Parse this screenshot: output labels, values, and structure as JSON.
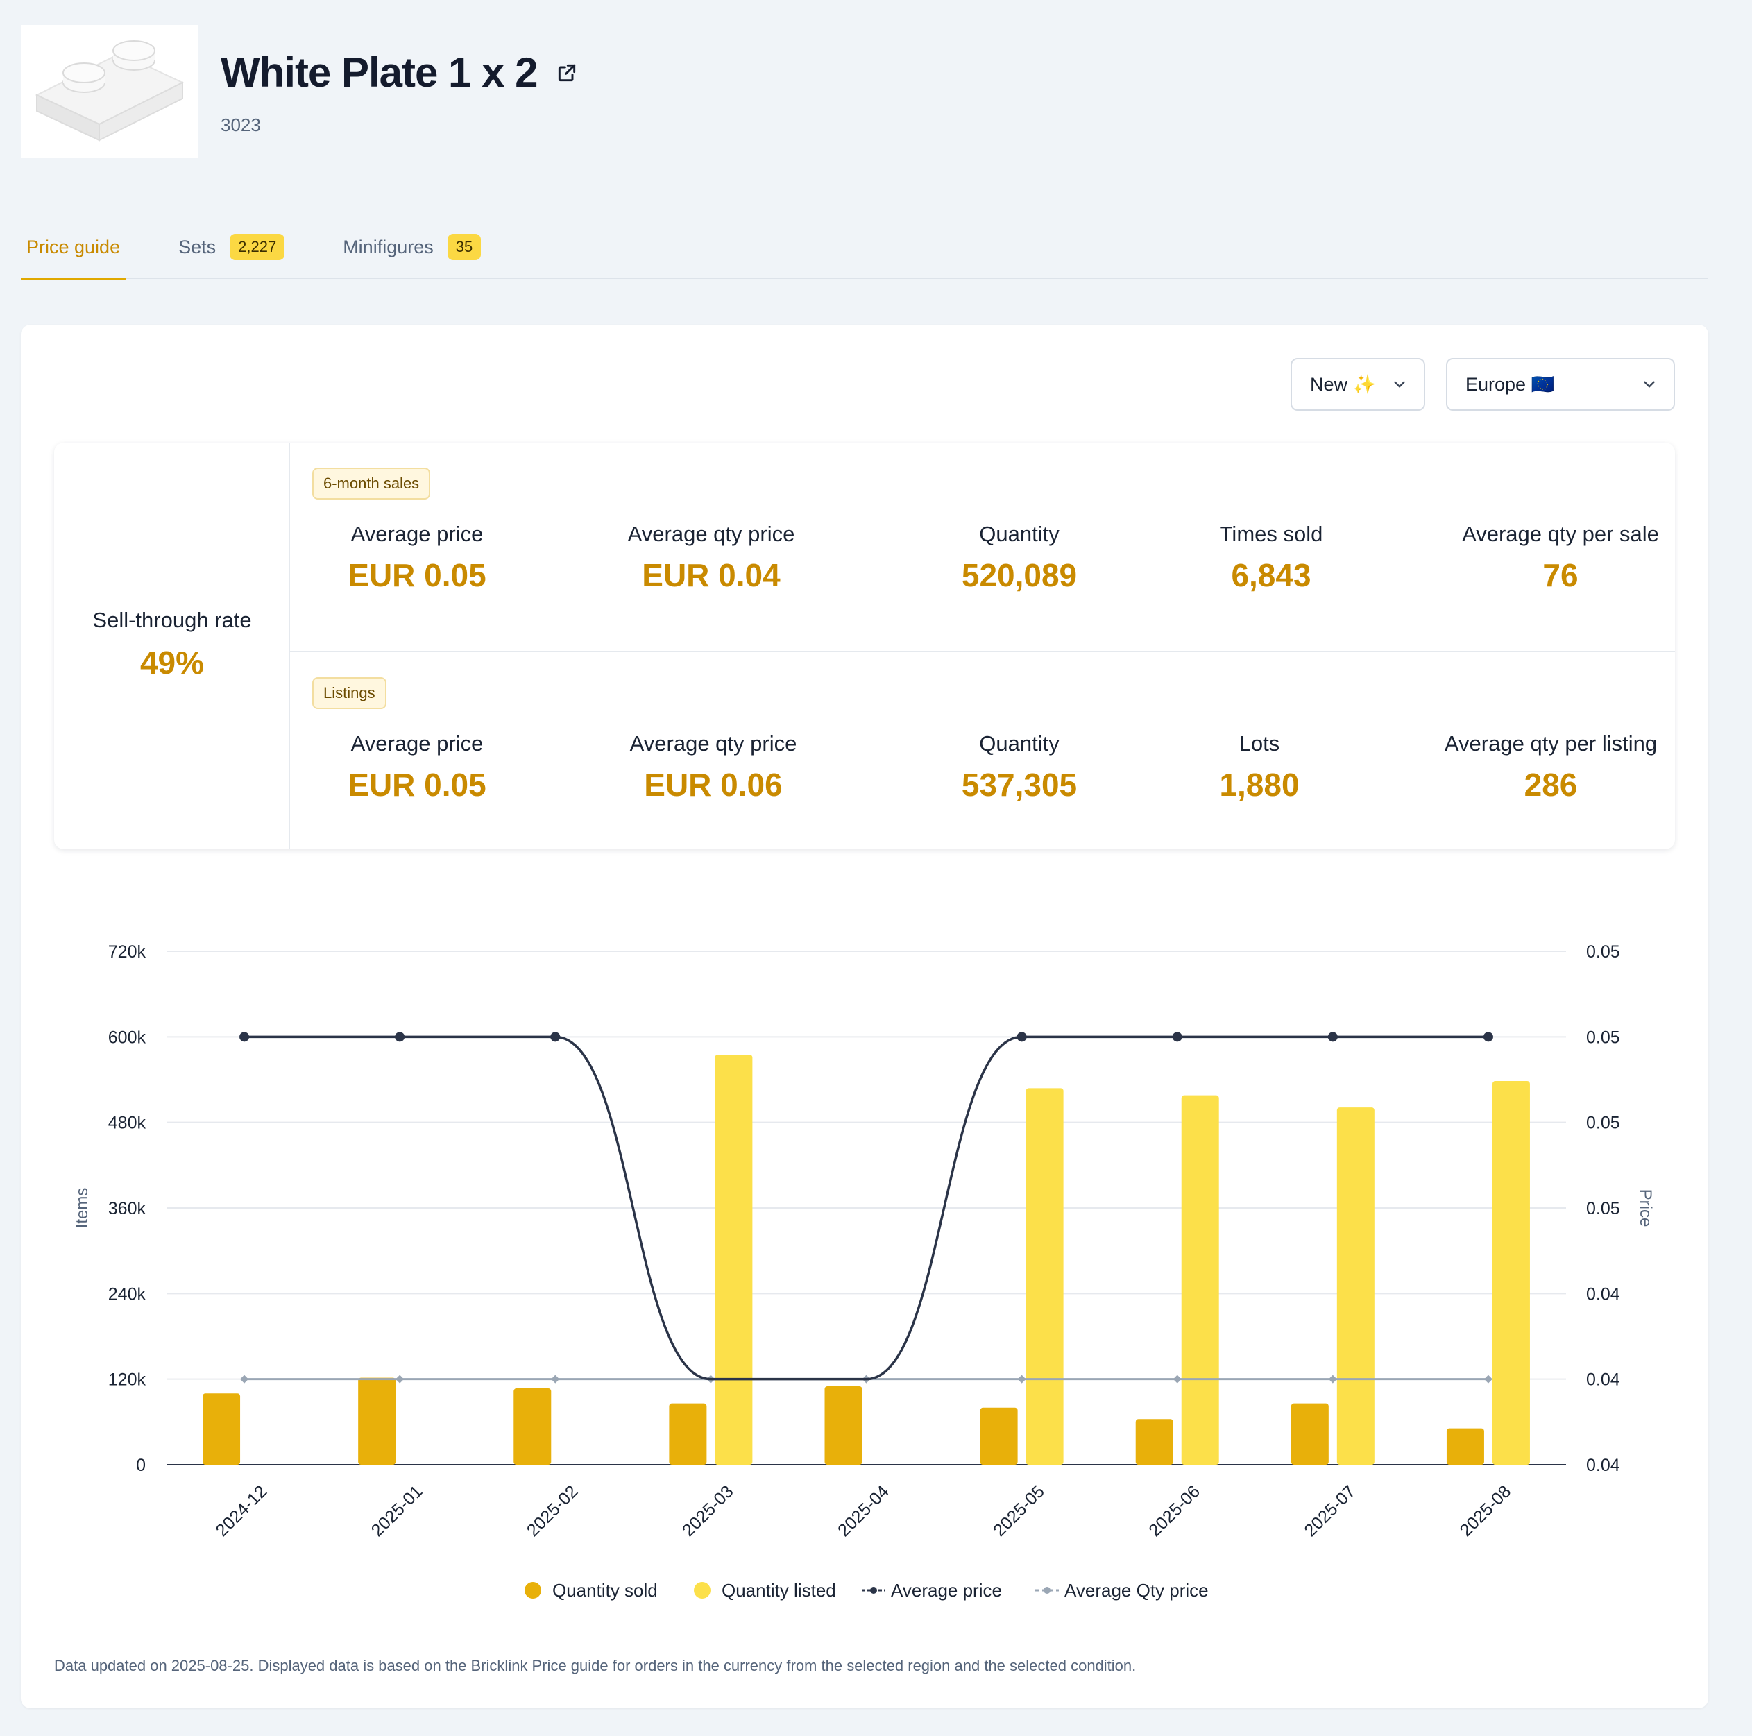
{
  "header": {
    "title": "White Plate 1 x 2",
    "part_number": "3023"
  },
  "tabs": [
    {
      "label": "Price guide",
      "badge": ""
    },
    {
      "label": "Sets",
      "badge": "2,227"
    },
    {
      "label": "Minifigures",
      "badge": "35"
    }
  ],
  "filters": {
    "condition": "New ✨",
    "region": "Europe 🇪🇺"
  },
  "sell_through": {
    "label": "Sell-through rate",
    "value": "49%"
  },
  "sales": {
    "pill": "6-month sales",
    "metrics": [
      {
        "label": "Average price",
        "value": "EUR 0.05"
      },
      {
        "label": "Average qty price",
        "value": "EUR 0.04"
      },
      {
        "label": "Quantity",
        "value": "520,089"
      },
      {
        "label": "Times sold",
        "value": "6,843"
      },
      {
        "label": "Average qty per sale",
        "value": "76"
      }
    ]
  },
  "listings": {
    "pill": "Listings",
    "metrics": [
      {
        "label": "Average price",
        "value": "EUR 0.05"
      },
      {
        "label": "Average qty price",
        "value": "EUR 0.06"
      },
      {
        "label": "Quantity",
        "value": "537,305"
      },
      {
        "label": "Lots",
        "value": "1,880"
      },
      {
        "label": "Average qty per listing",
        "value": "286"
      }
    ]
  },
  "colors": {
    "accent": "#c98a00",
    "quantity_sold": "#e8b00a",
    "quantity_listed": "#fce04a",
    "average_price": "#2b3448",
    "average_qty_price": "#9aa6b4"
  },
  "chart_data": {
    "type": "bar",
    "categories": [
      "2024-12",
      "2025-01",
      "2025-02",
      "2025-03",
      "2025-04",
      "2025-05",
      "2025-06",
      "2025-07",
      "2025-08"
    ],
    "ylabel": "Items",
    "y2label": "Price",
    "ylim": [
      0,
      720000
    ],
    "y_ticks": [
      "0",
      "120k",
      "240k",
      "360k",
      "480k",
      "600k",
      "720k"
    ],
    "y2_ticks": [
      "0.04",
      "0.04",
      "0.04",
      "0.05",
      "0.05",
      "0.05",
      "0.05"
    ],
    "grid": true,
    "legend_position": "bottom",
    "series": [
      {
        "name": "Quantity sold",
        "kind": "bar",
        "values": [
          100000,
          122000,
          107000,
          86000,
          110000,
          80000,
          64000,
          86000,
          51000
        ]
      },
      {
        "name": "Quantity listed",
        "kind": "bar",
        "values": [
          0,
          0,
          0,
          575000,
          0,
          528000,
          518000,
          501000,
          538000
        ]
      },
      {
        "name": "Average price",
        "kind": "line",
        "values": [
          600000,
          600000,
          600000,
          120000,
          120000,
          600000,
          600000,
          600000,
          600000
        ]
      },
      {
        "name": "Average Qty price",
        "kind": "line",
        "values": [
          120000,
          120000,
          120000,
          120000,
          120000,
          120000,
          120000,
          120000,
          120000
        ]
      }
    ]
  },
  "footer": {
    "note": "Data updated on 2025-08-25. Displayed data is based on the Bricklink Price guide for orders in the currency from the selected region and the selected condition."
  }
}
